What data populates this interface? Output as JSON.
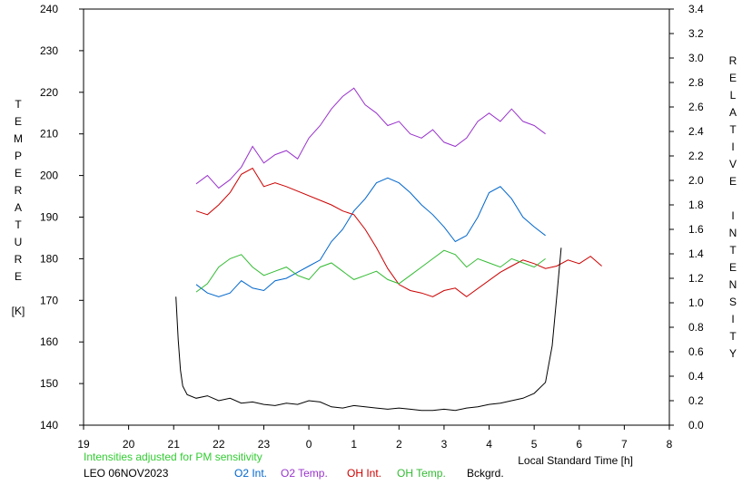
{
  "chart_data": {
    "type": "line",
    "xlabel": "Local Standard Time [h]",
    "ylabel_left_letters": [
      "T",
      "E",
      "M",
      "P",
      "E",
      "R",
      "A",
      "T",
      "U",
      "R",
      "E",
      "",
      "[K]"
    ],
    "ylabel_right_letters": [
      "R",
      "E",
      "L",
      "A",
      "T",
      "I",
      "V",
      "E",
      "",
      "I",
      "N",
      "T",
      "E",
      "N",
      "S",
      "I",
      "T",
      "Y"
    ],
    "x_ticks": [
      "19",
      "20",
      "21",
      "22",
      "23",
      "0",
      "1",
      "2",
      "3",
      "4",
      "5",
      "6",
      "7",
      "8"
    ],
    "y_left_ticks": [
      "140",
      "150",
      "160",
      "170",
      "180",
      "190",
      "200",
      "210",
      "220",
      "230",
      "240"
    ],
    "y_right_ticks": [
      "0.0",
      "0.2",
      "0.4",
      "0.6",
      "0.8",
      "1.0",
      "1.2",
      "1.4",
      "1.6",
      "1.8",
      "2.0",
      "2.2",
      "2.4",
      "2.6",
      "2.8",
      "3.0",
      "3.2",
      "3.4"
    ],
    "x_range_hours": [
      19,
      32
    ],
    "y_left_range": [
      140,
      240
    ],
    "y_right_range": [
      0.0,
      3.4
    ],
    "grid": false,
    "series": [
      {
        "name": "O2 Int.",
        "axis": "right",
        "color": "#0066cc",
        "x": [
          21.5,
          21.75,
          22.0,
          22.25,
          22.5,
          22.75,
          23.0,
          23.25,
          23.5,
          23.75,
          24.0,
          24.25,
          24.5,
          24.75,
          25.0,
          25.25,
          25.5,
          25.75,
          26.0,
          26.25,
          26.5,
          26.75,
          27.0,
          27.25,
          27.5,
          27.75,
          28.0,
          28.25,
          28.5,
          28.75,
          29.0,
          29.25
        ],
        "y": [
          1.15,
          1.08,
          1.05,
          1.08,
          1.18,
          1.12,
          1.1,
          1.18,
          1.2,
          1.25,
          1.3,
          1.35,
          1.5,
          1.6,
          1.75,
          1.85,
          1.98,
          2.02,
          1.98,
          1.9,
          1.8,
          1.72,
          1.62,
          1.5,
          1.55,
          1.7,
          1.9,
          1.95,
          1.85,
          1.7,
          1.62,
          1.55
        ]
      },
      {
        "name": "O2 Temp.",
        "axis": "left",
        "color": "#9933cc",
        "x": [
          21.5,
          21.75,
          22.0,
          22.25,
          22.5,
          22.75,
          23.0,
          23.25,
          23.5,
          23.75,
          24.0,
          24.25,
          24.5,
          24.75,
          25.0,
          25.25,
          25.5,
          25.75,
          26.0,
          26.25,
          26.5,
          26.75,
          27.0,
          27.25,
          27.5,
          27.75,
          28.0,
          28.25,
          28.5,
          28.75,
          29.0,
          29.25
        ],
        "y": [
          198,
          200,
          197,
          199,
          202,
          207,
          203,
          205,
          206,
          204,
          209,
          212,
          216,
          219,
          221,
          217,
          215,
          212,
          213,
          210,
          209,
          211,
          208,
          207,
          209,
          213,
          215,
          213,
          216,
          213,
          212,
          210
        ]
      },
      {
        "name": "OH Int.",
        "axis": "right",
        "color": "#cc0000",
        "x": [
          21.5,
          21.75,
          22.0,
          22.25,
          22.5,
          22.75,
          23.0,
          23.25,
          23.5,
          24.5,
          24.75,
          25.0,
          25.25,
          25.5,
          25.75,
          26.0,
          26.25,
          26.5,
          26.75,
          27.0,
          27.25,
          27.5,
          28.25,
          28.5,
          28.75,
          29.0,
          29.25,
          29.5,
          29.75,
          30.0,
          30.25,
          30.5
        ],
        "y": [
          1.75,
          1.72,
          1.8,
          1.9,
          2.05,
          2.1,
          1.95,
          1.98,
          1.95,
          1.8,
          1.75,
          1.72,
          1.6,
          1.45,
          1.28,
          1.15,
          1.1,
          1.08,
          1.05,
          1.1,
          1.12,
          1.05,
          1.25,
          1.3,
          1.35,
          1.32,
          1.28,
          1.3,
          1.35,
          1.32,
          1.38,
          1.3
        ]
      },
      {
        "name": "OH Temp.",
        "axis": "left",
        "color": "#33bb33",
        "x": [
          21.5,
          21.75,
          22.0,
          22.25,
          22.5,
          22.75,
          23.0,
          23.25,
          23.5,
          23.75,
          24.0,
          24.25,
          24.5,
          24.75,
          25.0,
          25.25,
          25.5,
          25.75,
          26.0,
          26.25,
          26.5,
          26.75,
          27.0,
          27.25,
          27.5,
          27.75,
          28.0,
          28.25,
          28.5,
          28.75,
          29.0,
          29.25
        ],
        "y": [
          172,
          174,
          178,
          180,
          181,
          178,
          176,
          177,
          178,
          176,
          175,
          178,
          179,
          177,
          175,
          176,
          177,
          175,
          174,
          176,
          178,
          180,
          182,
          181,
          178,
          180,
          179,
          178,
          180,
          179,
          178,
          180
        ]
      },
      {
        "name": "Bckgrd.",
        "axis": "right",
        "color": "#000000",
        "x": [
          21.05,
          21.1,
          21.15,
          21.2,
          21.3,
          21.5,
          21.75,
          22.0,
          22.25,
          22.5,
          22.75,
          23.0,
          23.25,
          23.5,
          23.75,
          24.0,
          24.25,
          24.5,
          24.75,
          25.0,
          25.25,
          25.5,
          25.75,
          26.0,
          26.25,
          26.5,
          26.75,
          27.0,
          27.25,
          27.5,
          27.75,
          28.0,
          28.25,
          28.5,
          28.75,
          29.0,
          29.25,
          29.4,
          29.5,
          29.6
        ],
        "y": [
          1.05,
          0.7,
          0.45,
          0.32,
          0.25,
          0.22,
          0.24,
          0.2,
          0.22,
          0.18,
          0.19,
          0.17,
          0.16,
          0.18,
          0.17,
          0.2,
          0.19,
          0.15,
          0.14,
          0.16,
          0.15,
          0.14,
          0.13,
          0.14,
          0.13,
          0.12,
          0.12,
          0.13,
          0.12,
          0.14,
          0.15,
          0.17,
          0.18,
          0.2,
          0.22,
          0.26,
          0.35,
          0.65,
          1.05,
          1.45
        ]
      }
    ]
  },
  "notes": {
    "intensities": "Intensities adjusted for PM sensitivity",
    "station_date": "LEO 06NOV2023"
  },
  "legend": [
    {
      "label": "O2 Int.",
      "color": "#0066cc"
    },
    {
      "label": "O2 Temp.",
      "color": "#9933cc"
    },
    {
      "label": "OH Int.",
      "color": "#cc0000"
    },
    {
      "label": "OH Temp.",
      "color": "#33bb33"
    },
    {
      "label": "Bckgrd.",
      "color": "#000000"
    }
  ],
  "colors": {
    "intensity_note": "#33cc33"
  }
}
